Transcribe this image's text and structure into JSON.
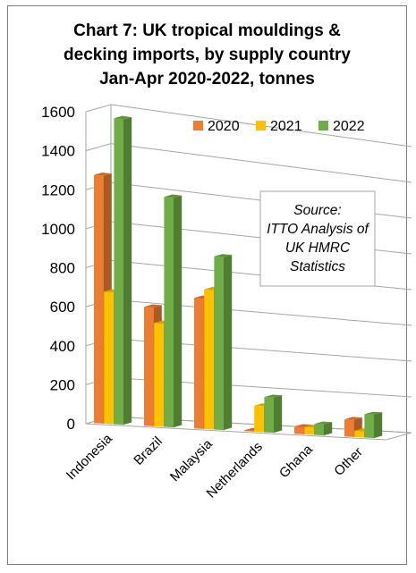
{
  "chart_data": {
    "type": "bar",
    "title_lines": [
      "Chart 7: UK tropical mouldings &",
      "decking imports, by supply country",
      "Jan-Apr 2020-2022, tonnes"
    ],
    "categories": [
      "Indonesia",
      "Brazil",
      "Malaysia",
      "Netherlands",
      "Ghana",
      "Other"
    ],
    "series": [
      {
        "name": "2020",
        "values": [
          1275,
          620,
          690,
          5,
          40,
          95
        ]
      },
      {
        "name": "2021",
        "values": [
          680,
          540,
          740,
          140,
          40,
          35
        ]
      },
      {
        "name": "2022",
        "values": [
          1580,
          1205,
          920,
          190,
          60,
          130
        ]
      }
    ],
    "ylim": [
      0,
      1600
    ],
    "yticks": [
      0,
      200,
      400,
      600,
      800,
      1000,
      1200,
      1400,
      1600
    ],
    "grid": true,
    "legend_position": "top-right",
    "annotation": [
      "Source:",
      "ITTO Analysis of",
      "UK HMRC",
      "Statistics"
    ],
    "colors": {
      "2020": "#ed7d31",
      "2021": "#ffc000",
      "2022": "#70ad47",
      "grid": "#a6a6a6",
      "frame": "#7f7f7f"
    }
  }
}
